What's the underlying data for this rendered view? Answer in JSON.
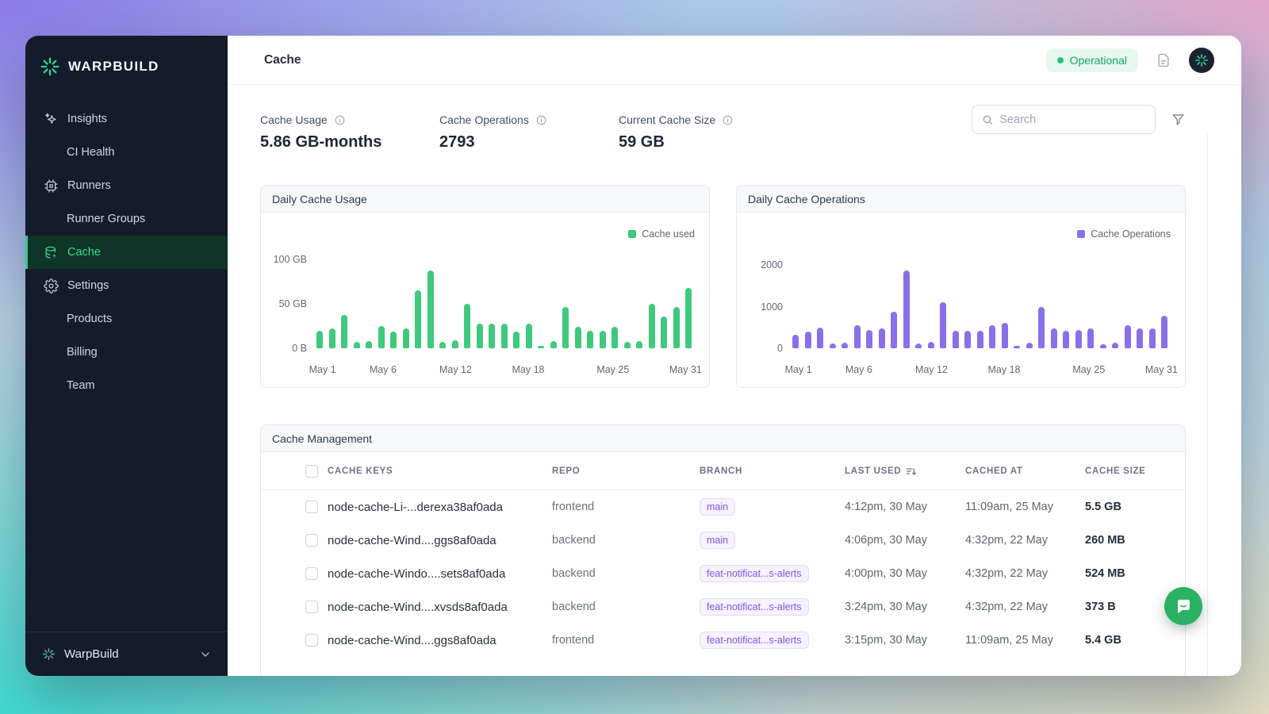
{
  "app": {
    "brand": "WARPBUILD",
    "org": "WarpBuild"
  },
  "sidebar": {
    "items": [
      {
        "label": "Insights"
      },
      {
        "label": "CI Health"
      },
      {
        "label": "Runners"
      },
      {
        "label": "Runner Groups"
      },
      {
        "label": "Cache"
      },
      {
        "label": "Settings"
      },
      {
        "label": "Products"
      },
      {
        "label": "Billing"
      },
      {
        "label": "Team"
      }
    ]
  },
  "header": {
    "title": "Cache",
    "status": "Operational"
  },
  "stats": [
    {
      "label": "Cache Usage",
      "value": "5.86 GB-months"
    },
    {
      "label": "Cache Operations",
      "value": "2793"
    },
    {
      "label": "Current Cache Size",
      "value": "59 GB"
    }
  ],
  "search": {
    "placeholder": "Search"
  },
  "chart_data": [
    {
      "type": "bar",
      "title": "Daily Cache Usage",
      "legend_label": "Cache used",
      "color": "#3ec97c",
      "unit": "GB",
      "ymax": 105,
      "ylim": [
        0,
        105
      ],
      "values": [
        20,
        22,
        37,
        7,
        8,
        25,
        19,
        22,
        65,
        87,
        7,
        9,
        50,
        28,
        28,
        28,
        19,
        28,
        3,
        8,
        46,
        24,
        20,
        20,
        24,
        7,
        8,
        50,
        36,
        46,
        68
      ],
      "y_ticks": [
        {
          "label": "0 B",
          "value": 0
        },
        {
          "label": "50 GB",
          "value": 50
        },
        {
          "label": "100 GB",
          "value": 100
        }
      ],
      "x_ticks": [
        {
          "label": "May 1",
          "index": 0
        },
        {
          "label": "May 6",
          "index": 5
        },
        {
          "label": "May 12",
          "index": 11
        },
        {
          "label": "May 18",
          "index": 17
        },
        {
          "label": "May 25",
          "index": 24
        },
        {
          "label": "May 31",
          "index": 30
        }
      ]
    },
    {
      "type": "bar",
      "title": "Daily Cache Operations",
      "legend_label": "Cache Operations",
      "color": "#8b6fe8",
      "unit": "operations",
      "ymax": 2250,
      "ylim": [
        0,
        2250
      ],
      "values": [
        320,
        400,
        500,
        120,
        140,
        550,
        430,
        480,
        870,
        1870,
        120,
        160,
        1100,
        420,
        420,
        420,
        560,
        620,
        60,
        130,
        1000,
        470,
        420,
        430,
        480,
        100,
        130,
        560,
        470,
        470,
        780
      ],
      "y_ticks": [
        {
          "label": "0",
          "value": 0
        },
        {
          "label": "1000",
          "value": 1000
        },
        {
          "label": "2000",
          "value": 2000
        }
      ],
      "x_ticks": [
        {
          "label": "May 1",
          "index": 0
        },
        {
          "label": "May 6",
          "index": 5
        },
        {
          "label": "May 12",
          "index": 11
        },
        {
          "label": "May 18",
          "index": 17
        },
        {
          "label": "May 25",
          "index": 24
        },
        {
          "label": "May 31",
          "index": 30
        }
      ]
    }
  ],
  "table": {
    "title": "Cache Management",
    "columns": [
      "CACHE KEYS",
      "REPO",
      "BRANCH",
      "LAST USED",
      "CACHED AT",
      "CACHE SIZE"
    ],
    "rows": [
      {
        "key": "node-cache-Li-...derexa38af0ada",
        "repo": "frontend",
        "branch": "main",
        "last_used": "4:12pm, 30 May",
        "cached_at": "11:09am, 25 May",
        "size": "5.5 GB"
      },
      {
        "key": "node-cache-Wind....ggs8af0ada",
        "repo": "backend",
        "branch": "main",
        "last_used": "4:06pm, 30 May",
        "cached_at": "4:32pm, 22 May",
        "size": "260 MB"
      },
      {
        "key": "node-cache-Windo....sets8af0ada",
        "repo": "backend",
        "branch": "feat-notificat...s-alerts",
        "last_used": "4:00pm, 30 May",
        "cached_at": "4:32pm, 22 May",
        "size": "524 MB"
      },
      {
        "key": "node-cache-Wind....xvsds8af0ada",
        "repo": "backend",
        "branch": "feat-notificat...s-alerts",
        "last_used": "3:24pm, 30 May",
        "cached_at": "4:32pm, 22 May",
        "size": "373 B"
      },
      {
        "key": "node-cache-Wind....ggs8af0ada",
        "repo": "frontend",
        "branch": "feat-notificat...s-alerts",
        "last_used": "3:15pm, 30 May",
        "cached_at": "11:09am, 25 May",
        "size": "5.4 GB"
      }
    ]
  },
  "colors": {
    "sidebar_bg": "#141b2b",
    "accent_green": "#2ecc8e",
    "bar_green": "#3ec97c",
    "bar_purple": "#8b6fe8",
    "status_green": "#17a56b"
  }
}
